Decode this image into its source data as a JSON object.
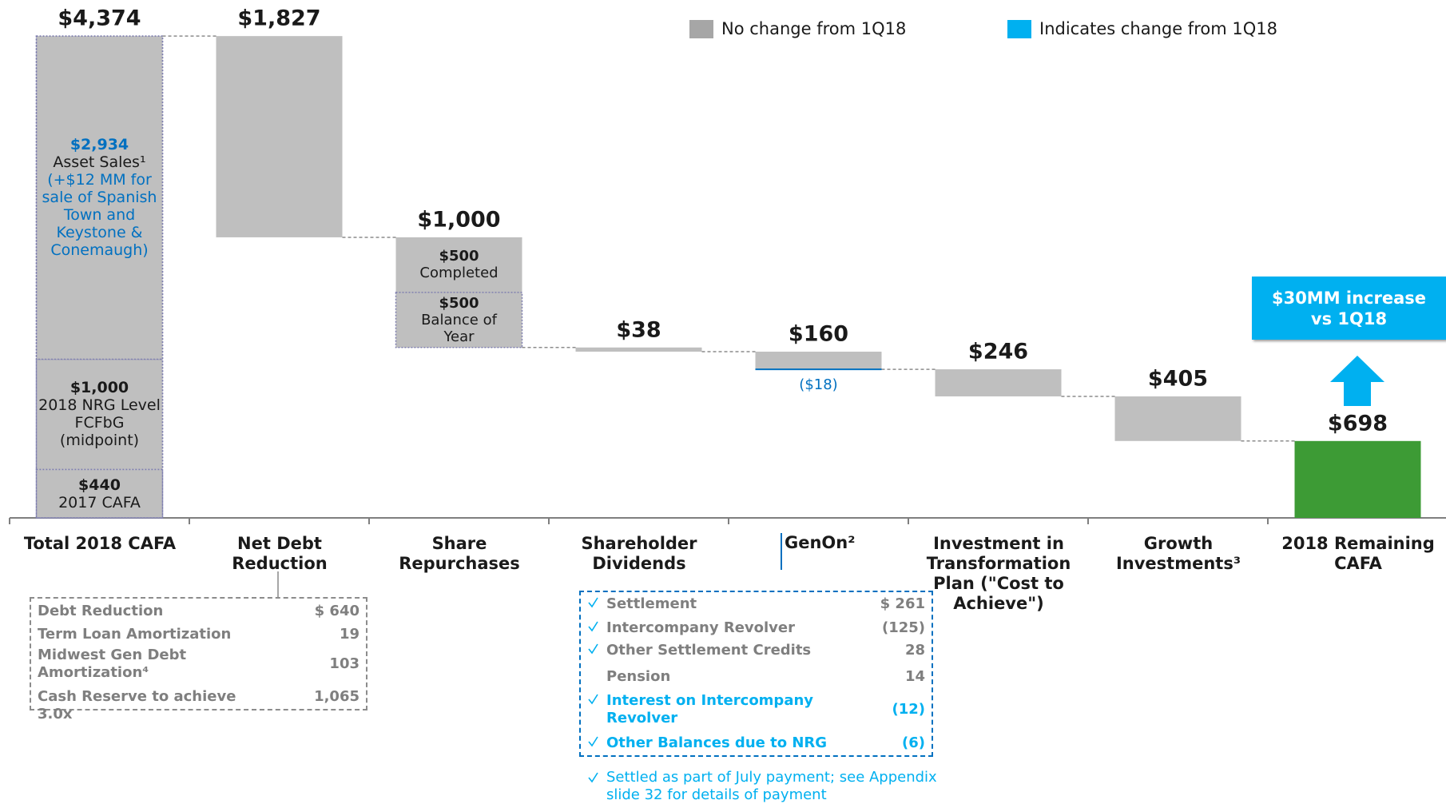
{
  "chart_data": {
    "type": "waterfall",
    "legend": [
      {
        "name": "No change from 1Q18",
        "color": "#a6a6a6"
      },
      {
        "name": "Indicates change from 1Q18",
        "color": "#00b0f0"
      }
    ],
    "categories": [
      "Total 2018 CAFA",
      "Net Debt Reduction",
      "Share Repurchases",
      "Shareholder Dividends",
      "GenOn²",
      "Investment in Transformation Plan (\"Cost to Achieve\")",
      "Growth Investments³",
      "2018 Remaining CAFA"
    ],
    "values": [
      4374,
      1827,
      1000,
      38,
      160,
      246,
      405,
      698
    ],
    "value_labels": [
      "$4,374",
      "$1,827",
      "$1,000",
      "$38",
      "$160",
      "$246",
      "$405",
      "$698"
    ],
    "bar_color": "#bfbfbf",
    "total_color": "#3d9b35",
    "change_color": "#0070c0",
    "ylim": [
      0,
      4600
    ],
    "total_segments": [
      {
        "value": 440,
        "label": "$440",
        "text": "2017 CAFA"
      },
      {
        "value": 1000,
        "label": "$1,000",
        "text": "2018 NRG Level FCFbG (midpoint)"
      },
      {
        "value": 2934,
        "label": "$2,934",
        "text": "Asset Sales¹",
        "note": "(+$12 MM for sale of Spanish Town and Keystone & Conemaugh)"
      }
    ],
    "repurchase_segments": [
      {
        "value": 500,
        "label": "$500",
        "text": "Completed"
      },
      {
        "value": 500,
        "label": "$500",
        "text": "Balance of Year"
      }
    ],
    "genon_change": {
      "value": -18,
      "label": "($18)"
    },
    "callout": "$30MM increase vs 1Q18",
    "net_debt_table": [
      [
        "Debt Reduction",
        "$ 640"
      ],
      [
        "Term Loan Amortization",
        "19"
      ],
      [
        "Midwest Gen Debt Amortization⁴",
        "103"
      ],
      [
        "Cash Reserve to achieve 3.0x",
        "1,065"
      ]
    ],
    "genon_table": [
      {
        "label": "Settlement",
        "value": "$ 261",
        "checked": true,
        "changed": false
      },
      {
        "label": "Intercompany Revolver",
        "value": "(125)",
        "checked": true,
        "changed": false
      },
      {
        "label": "Other Settlement Credits",
        "value": "28",
        "checked": true,
        "changed": false
      },
      {
        "label": "Pension",
        "value": "14",
        "checked": false,
        "changed": false
      },
      {
        "label": "Interest on Intercompany Revolver",
        "value": "(12)",
        "checked": true,
        "changed": true
      },
      {
        "label": "Other Balances due to NRG",
        "value": "(6)",
        "checked": true,
        "changed": true
      }
    ],
    "footnote": "Settled as part of July payment; see Appendix slide 32 for details of payment"
  }
}
